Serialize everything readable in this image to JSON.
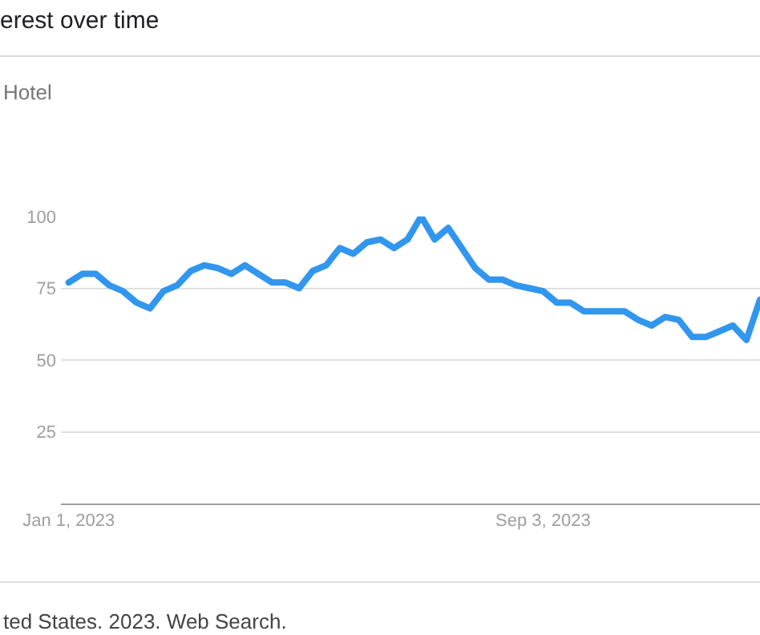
{
  "chart_data": {
    "type": "line",
    "title": "erest over time",
    "subtitle": "Hotel",
    "annotations": [
      "ted States. 2023. Web Search."
    ],
    "x": [
      "2023-01-01",
      "2023-01-08",
      "2023-01-15",
      "2023-01-22",
      "2023-01-29",
      "2023-02-05",
      "2023-02-12",
      "2023-02-19",
      "2023-02-26",
      "2023-03-05",
      "2023-03-12",
      "2023-03-19",
      "2023-03-26",
      "2023-04-02",
      "2023-04-09",
      "2023-04-16",
      "2023-04-23",
      "2023-04-30",
      "2023-05-07",
      "2023-05-14",
      "2023-05-21",
      "2023-05-28",
      "2023-06-04",
      "2023-06-11",
      "2023-06-18",
      "2023-06-25",
      "2023-07-02",
      "2023-07-09",
      "2023-07-16",
      "2023-07-23",
      "2023-07-30",
      "2023-08-06",
      "2023-08-13",
      "2023-08-20",
      "2023-08-27",
      "2023-09-03",
      "2023-09-10",
      "2023-09-17",
      "2023-09-24",
      "2023-10-01",
      "2023-10-08",
      "2023-10-15",
      "2023-10-22",
      "2023-10-29",
      "2023-11-05",
      "2023-11-12",
      "2023-11-19",
      "2023-11-26",
      "2023-12-03",
      "2023-12-10",
      "2023-12-17",
      "2023-12-24"
    ],
    "series": [
      {
        "color": "#3196ee",
        "values": [
          77,
          80,
          80,
          76,
          74,
          70,
          68,
          74,
          76,
          81,
          83,
          82,
          80,
          83,
          80,
          77,
          77,
          75,
          81,
          83,
          89,
          87,
          91,
          92,
          89,
          92,
          100,
          92,
          96,
          89,
          82,
          78,
          78,
          76,
          75,
          74,
          70,
          70,
          67,
          67,
          67,
          67,
          64,
          62,
          65,
          64,
          58,
          58,
          60,
          62,
          57,
          71
        ]
      }
    ],
    "xlim": [
      "2022-12-28",
      "2023-12-24"
    ],
    "xticks": [
      {
        "value": "2023-01-01",
        "label": "Jan 1, 2023"
      },
      {
        "value": "2023-09-03",
        "label": "Sep 3, 2023"
      }
    ],
    "ylim": [
      0,
      100
    ],
    "yticks": [
      25,
      50,
      75,
      100
    ],
    "grid": "y",
    "marker": "none",
    "line_style": "solid"
  }
}
